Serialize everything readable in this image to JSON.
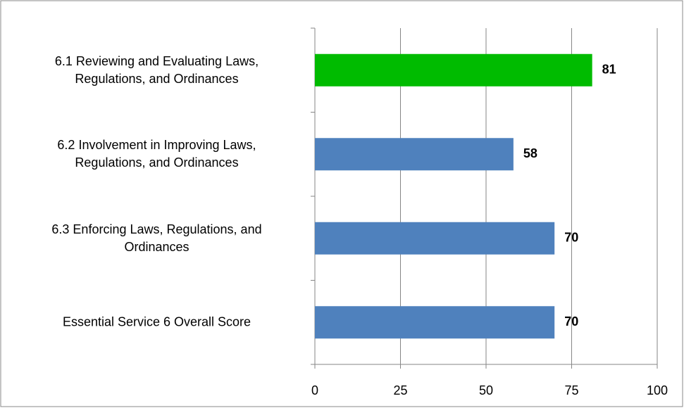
{
  "chart_data": {
    "type": "bar",
    "orientation": "horizontal",
    "categories": [
      "6.1 Reviewing and Evaluating Laws,\nRegulations, and Ordinances",
      "6.2 Involvement in Improving Laws,\nRegulations, and Ordinances",
      "6.3 Enforcing Laws, Regulations, and\nOrdinances",
      "Essential Service 6 Overall Score"
    ],
    "values": [
      81,
      58,
      70,
      70
    ],
    "colors": [
      "#00bb00",
      "#4f81bd",
      "#4f81bd",
      "#4f81bd"
    ],
    "xlim": [
      0,
      100
    ],
    "xticks": [
      0,
      25,
      50,
      75,
      100
    ],
    "grid": true
  }
}
